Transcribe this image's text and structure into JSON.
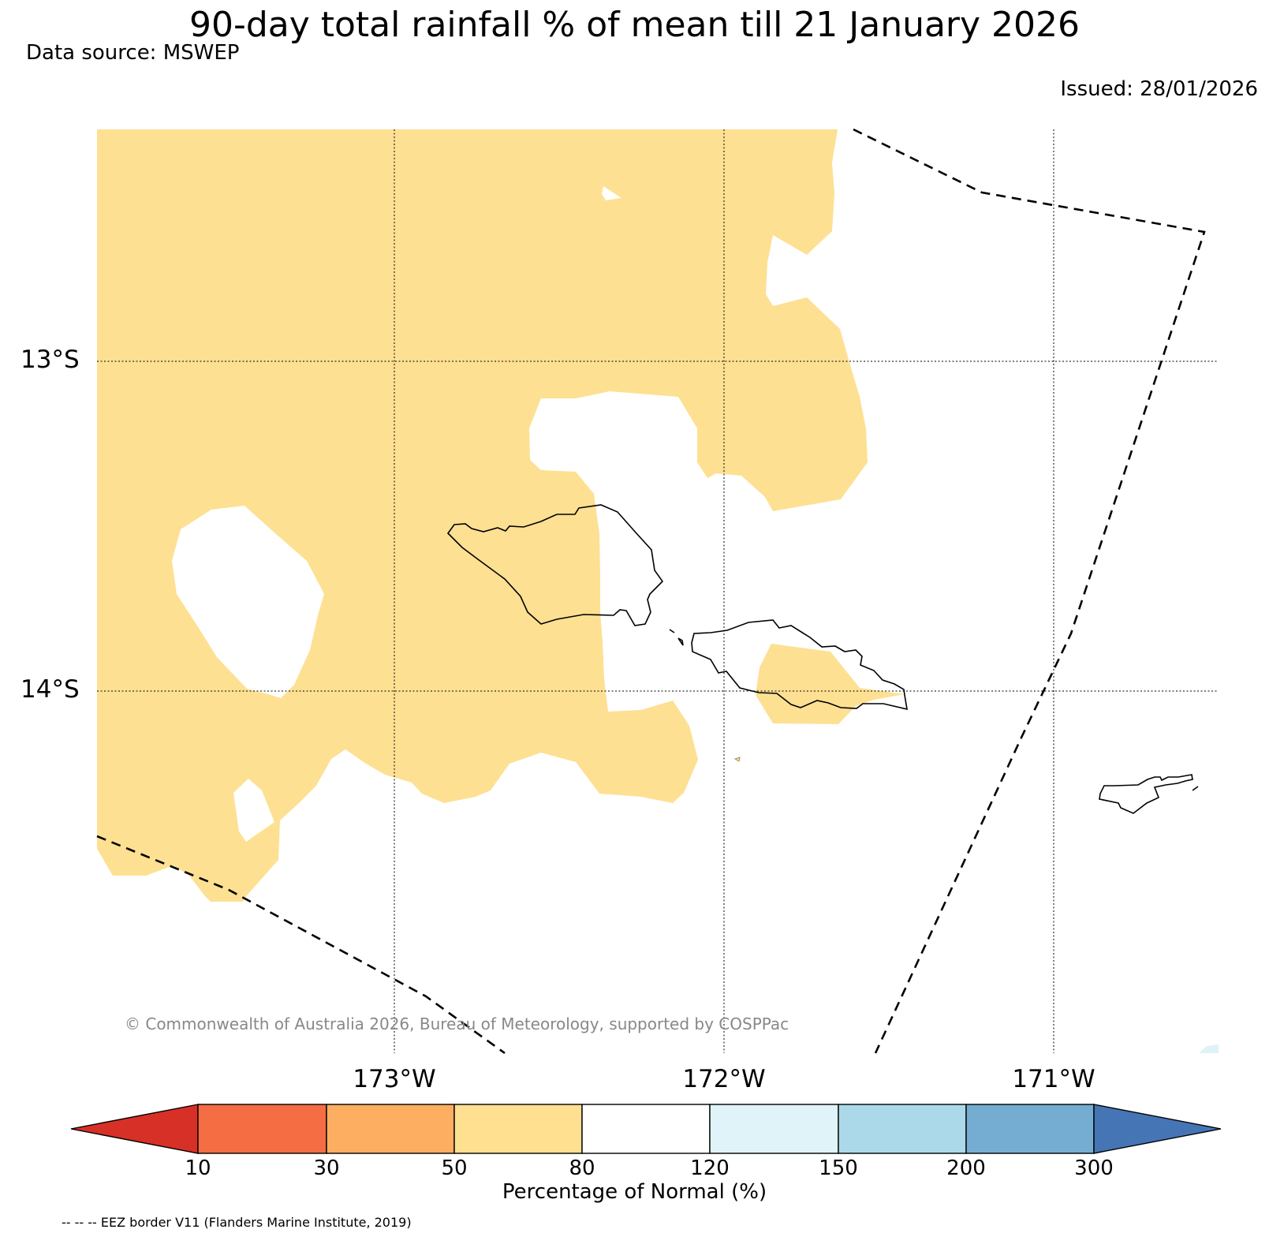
{
  "title": "90-day total rainfall % of mean till 21 January 2026",
  "data_source": "Data source: MSWEP",
  "issued": "Issued: 28/01/2026",
  "map": {
    "lat_labels": [
      "13°S",
      "14°S"
    ],
    "lon_labels": [
      "173°W",
      "172°W",
      "171°W"
    ],
    "gridlines": "dotted",
    "eez_line_style": "dashed",
    "fill_colors": {
      "dry_50_80": "#fde092",
      "normal_80_120": "#ffffff",
      "wet_120_150": "#e0f2f7"
    }
  },
  "copyright": "© Commonwealth of Australia 2026, Bureau of Meteorology, supported by COSPPac",
  "colorbar": {
    "ticks": [
      "10",
      "30",
      "50",
      "80",
      "120",
      "150",
      "200",
      "300"
    ],
    "label": "Percentage of Normal (%)",
    "colors": [
      "#d73027",
      "#f46d43",
      "#fdae61",
      "#fee090",
      "#ffffff",
      "#e0f3f8",
      "#abd9e9",
      "#74add1",
      "#4575b4"
    ],
    "extend": "both"
  },
  "eez_note": "-- -- -- EEZ border V11 (Flanders Marine Institute, 2019)"
}
